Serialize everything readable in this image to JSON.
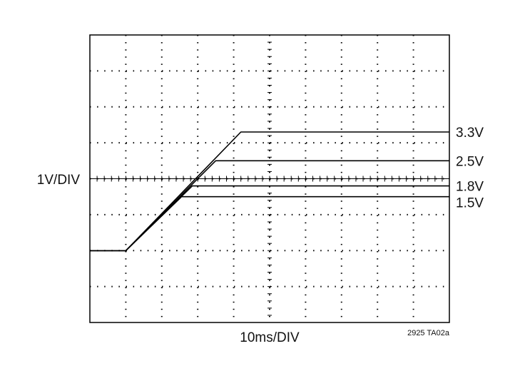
{
  "chart_data": {
    "type": "line",
    "xlabel": "10ms/DIV",
    "ylabel": "1V/DIV",
    "figure_id": "2925 TA02a",
    "x_unit": "div",
    "y_unit": "div",
    "xlim": [
      0,
      10
    ],
    "ylim": [
      0,
      8
    ],
    "grid": true,
    "grid_style": "dotted",
    "trace_color": "#000000",
    "series": [
      {
        "name": "3.3V",
        "points": [
          [
            0,
            2
          ],
          [
            1,
            2
          ],
          [
            4.2,
            5.3
          ],
          [
            4.5,
            5.3
          ],
          [
            10,
            5.3
          ]
        ]
      },
      {
        "name": "2.5V",
        "points": [
          [
            0,
            2
          ],
          [
            1,
            2
          ],
          [
            3.5,
            4.5
          ],
          [
            10,
            4.5
          ]
        ]
      },
      {
        "name": "1.8V",
        "points": [
          [
            0,
            2
          ],
          [
            1,
            2
          ],
          [
            2.85,
            3.8
          ],
          [
            10,
            3.8
          ]
        ]
      },
      {
        "name": "1.5V",
        "points": [
          [
            0,
            2
          ],
          [
            1,
            2
          ],
          [
            2.55,
            3.5
          ],
          [
            10,
            3.5
          ]
        ]
      }
    ]
  }
}
